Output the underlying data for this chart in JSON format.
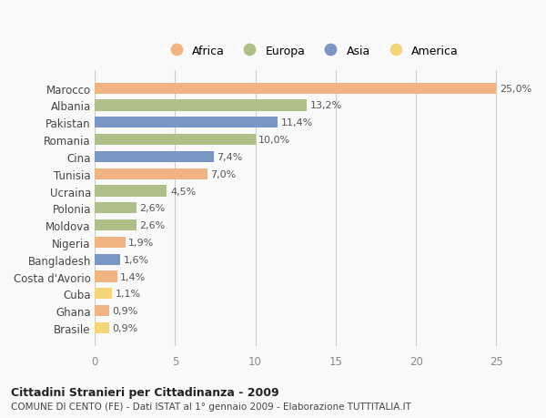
{
  "countries": [
    "Marocco",
    "Albania",
    "Pakistan",
    "Romania",
    "Cina",
    "Tunisia",
    "Ucraina",
    "Polonia",
    "Moldova",
    "Nigeria",
    "Bangladesh",
    "Costa d'Avorio",
    "Cuba",
    "Ghana",
    "Brasile"
  ],
  "values": [
    25.0,
    13.2,
    11.4,
    10.0,
    7.4,
    7.0,
    4.5,
    2.6,
    2.6,
    1.9,
    1.6,
    1.4,
    1.1,
    0.9,
    0.9
  ],
  "labels": [
    "25,0%",
    "13,2%",
    "11,4%",
    "10,0%",
    "7,4%",
    "7,0%",
    "4,5%",
    "2,6%",
    "2,6%",
    "1,9%",
    "1,6%",
    "1,4%",
    "1,1%",
    "0,9%",
    "0,9%"
  ],
  "continent": [
    "Africa",
    "Europa",
    "Asia",
    "Europa",
    "Asia",
    "Africa",
    "Europa",
    "Europa",
    "Europa",
    "Africa",
    "Asia",
    "Africa",
    "America",
    "Africa",
    "America"
  ],
  "colors": {
    "Africa": "#F0B482",
    "Europa": "#AEBF8A",
    "Asia": "#7A96C2",
    "America": "#F5D57A"
  },
  "legend_order": [
    "Africa",
    "Europa",
    "Asia",
    "America"
  ],
  "title_bold": "Cittadini Stranieri per Cittadinanza - 2009",
  "subtitle": "COMUNE DI CENTO (FE) - Dati ISTAT al 1° gennaio 2009 - Elaborazione TUTTITALIA.IT",
  "xlim": [
    0,
    27
  ],
  "xticks": [
    0,
    5,
    10,
    15,
    20,
    25
  ],
  "background_color": "#f9f9f9",
  "grid_color": "#cccccc",
  "bar_height": 0.65
}
